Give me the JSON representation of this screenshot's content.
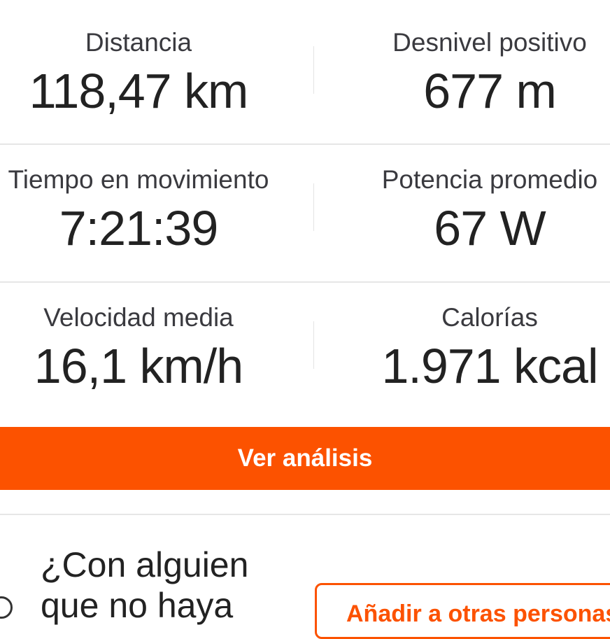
{
  "stats": [
    {
      "label": "Distancia",
      "value": "118,47 km"
    },
    {
      "label": "Desnivel positivo",
      "value": "677 m"
    },
    {
      "label": "Tiempo en movimiento",
      "value": "7:21:39"
    },
    {
      "label": "Potencia promedio",
      "value": "67 W"
    },
    {
      "label": "Velocidad media",
      "value": "16,1 km/h"
    },
    {
      "label": "Calorías",
      "value": "1.971 kcal"
    }
  ],
  "analysis_button": "Ver análisis",
  "invite": {
    "question_line1": "¿Con alguien",
    "question_line2": "que no haya",
    "add_button": "Añadir a otras personas",
    "icon": "person-add-icon"
  },
  "colors": {
    "accent": "#fc5200"
  }
}
